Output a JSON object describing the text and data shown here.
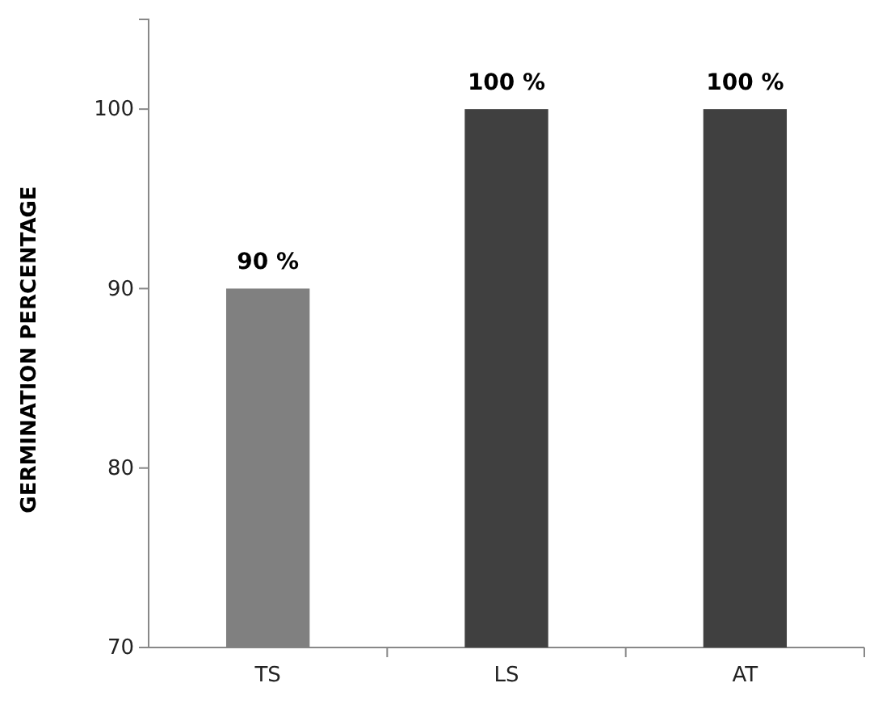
{
  "chart_data": {
    "type": "bar",
    "ylabel": "GERMINATION PERCENTAGE",
    "categories": [
      "TS",
      "LS",
      "AT"
    ],
    "values": [
      90,
      100,
      100
    ],
    "colors": [
      "#808080",
      "#404040",
      "#404040"
    ],
    "value_labels": [
      "90 %",
      "100 %",
      "100 %"
    ],
    "ylim": [
      70,
      105
    ],
    "yticks": [
      70,
      80,
      90,
      100
    ],
    "grid": false
  }
}
